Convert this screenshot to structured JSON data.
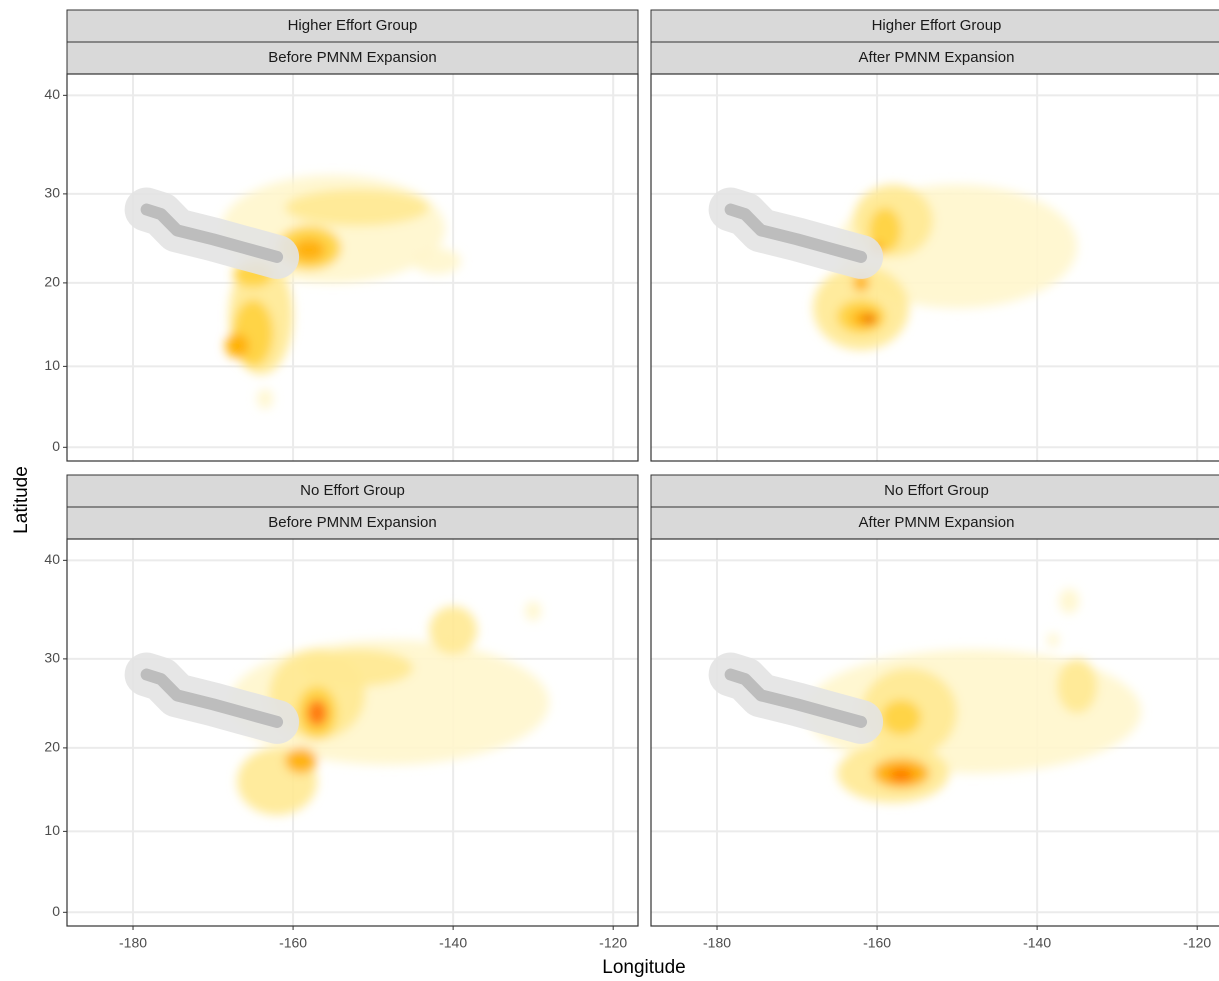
{
  "chart_data": {
    "type": "density",
    "projection": "mercator",
    "xlabel": "Longitude",
    "ylabel": "Latitude",
    "xlim": [
      -188.25,
      -116.9
    ],
    "ylim": [
      -1.7,
      42
    ],
    "xticks": [
      -180,
      -160,
      -140,
      -120
    ],
    "yticks": [
      0,
      10,
      20,
      30,
      40
    ],
    "grid": true,
    "level_colors": [
      "#fff6cc",
      "#ffe992",
      "#ffd23d",
      "#ffad00",
      "#ff7000",
      "#e02808"
    ],
    "monument_path": {
      "x": [
        -178.3,
        -176.5,
        -174.5,
        -170,
        -166,
        -162
      ],
      "y": [
        28.3,
        27.8,
        26,
        25,
        24,
        23
      ]
    },
    "monument_color": "#bdbdbd",
    "monument_halo_color": "#e3e3e3",
    "panels": [
      {
        "group": "Higher Effort Group",
        "period": "Before PMNM Expansion",
        "density": [
          {
            "lon": -155,
            "lat": 26,
            "width": 28,
            "height": 12,
            "level": 1
          },
          {
            "lon": -142,
            "lat": 22.5,
            "width": 6,
            "height": 3,
            "level": 1
          },
          {
            "lon": -163.5,
            "lat": 6,
            "width": 2,
            "height": 2.5,
            "level": 1
          },
          {
            "lon": -152,
            "lat": 28.5,
            "width": 18,
            "height": 4,
            "level": 2
          },
          {
            "lon": -164,
            "lat": 16,
            "width": 8,
            "height": 14,
            "level": 2
          },
          {
            "lon": -158,
            "lat": 24,
            "width": 8,
            "height": 5,
            "level": 3
          },
          {
            "lon": -165,
            "lat": 14,
            "width": 5,
            "height": 8,
            "level": 3
          },
          {
            "lon": -165,
            "lat": 21,
            "width": 5,
            "height": 3,
            "level": 3
          },
          {
            "lon": -158,
            "lat": 23.8,
            "width": 4,
            "height": 2.5,
            "level": 4
          },
          {
            "lon": -167,
            "lat": 12.5,
            "width": 3,
            "height": 3,
            "level": 4
          }
        ]
      },
      {
        "group": "Higher Effort Group",
        "period": "After PMNM Expansion",
        "density": [
          {
            "lon": -150,
            "lat": 24,
            "width": 30,
            "height": 14,
            "level": 1
          },
          {
            "lon": -158,
            "lat": 27,
            "width": 10,
            "height": 8,
            "level": 2
          },
          {
            "lon": -162,
            "lat": 17,
            "width": 12,
            "height": 10,
            "level": 2
          },
          {
            "lon": -159,
            "lat": 26,
            "width": 4,
            "height": 5,
            "level": 3
          },
          {
            "lon": -162,
            "lat": 16,
            "width": 6,
            "height": 4,
            "level": 3
          },
          {
            "lon": -161.5,
            "lat": 15.8,
            "width": 3.5,
            "height": 2,
            "level": 4
          },
          {
            "lon": -162,
            "lat": 20,
            "width": 2,
            "height": 2,
            "level": 4
          },
          {
            "lon": -160,
            "lat": 24,
            "width": 1.5,
            "height": 1.5,
            "level": 4
          },
          {
            "lon": -161,
            "lat": 15.7,
            "width": 1.5,
            "height": 0.8,
            "level": 6
          }
        ]
      },
      {
        "group": "No Effort Group",
        "period": "Before PMNM Expansion",
        "density": [
          {
            "lon": -148,
            "lat": 25,
            "width": 40,
            "height": 14,
            "level": 1
          },
          {
            "lon": -130,
            "lat": 35,
            "width": 2,
            "height": 2,
            "level": 1
          },
          {
            "lon": -140,
            "lat": 33,
            "width": 6,
            "height": 5,
            "level": 2
          },
          {
            "lon": -157,
            "lat": 26,
            "width": 12,
            "height": 10,
            "level": 2
          },
          {
            "lon": -152,
            "lat": 29,
            "width": 14,
            "height": 4,
            "level": 2
          },
          {
            "lon": -162,
            "lat": 16,
            "width": 10,
            "height": 8,
            "level": 2
          },
          {
            "lon": -157,
            "lat": 24,
            "width": 5,
            "height": 6,
            "level": 3
          },
          {
            "lon": -159,
            "lat": 18.5,
            "width": 4,
            "height": 3,
            "level": 4
          },
          {
            "lon": -157,
            "lat": 24,
            "width": 2.5,
            "height": 3,
            "level": 5
          }
        ]
      },
      {
        "group": "No Effort Group",
        "period": "After PMNM Expansion",
        "density": [
          {
            "lon": -148,
            "lat": 24,
            "width": 42,
            "height": 14,
            "level": 1
          },
          {
            "lon": -136,
            "lat": 36,
            "width": 2.5,
            "height": 2.5,
            "level": 1
          },
          {
            "lon": -138,
            "lat": 32,
            "width": 1.5,
            "height": 1.5,
            "level": 1
          },
          {
            "lon": -156,
            "lat": 24,
            "width": 12,
            "height": 10,
            "level": 2
          },
          {
            "lon": -158,
            "lat": 17,
            "width": 14,
            "height": 7,
            "level": 2
          },
          {
            "lon": -135,
            "lat": 27,
            "width": 5,
            "height": 6,
            "level": 2
          },
          {
            "lon": -157,
            "lat": 23.5,
            "width": 5,
            "height": 4,
            "level": 3
          },
          {
            "lon": -157,
            "lat": 17,
            "width": 7,
            "height": 3.5,
            "level": 4
          },
          {
            "lon": -157,
            "lat": 16.8,
            "width": 3,
            "height": 1.5,
            "level": 5
          }
        ]
      }
    ]
  }
}
